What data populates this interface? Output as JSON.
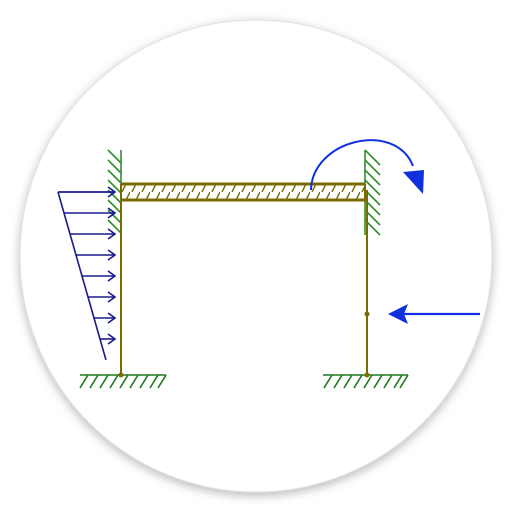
{
  "diagram": {
    "type": "frame-structure-loads",
    "colors": {
      "background": "#ffffff",
      "disc": "#ffffff",
      "disc_edge": "#d4d4d4",
      "member": "#7a6b00",
      "beam_fill": "#e6e2b0",
      "hatch": "#2f8f2f",
      "support_hatch": "#1f7a1f",
      "distributed_load": "#1a1a8f",
      "point_load": "#1030e0",
      "moment": "#1030e0"
    },
    "loads": {
      "distributed_load_arrows": 8,
      "distributed_load_direction": "right",
      "point_load_direction": "left",
      "moment_direction": "clockwise"
    }
  }
}
